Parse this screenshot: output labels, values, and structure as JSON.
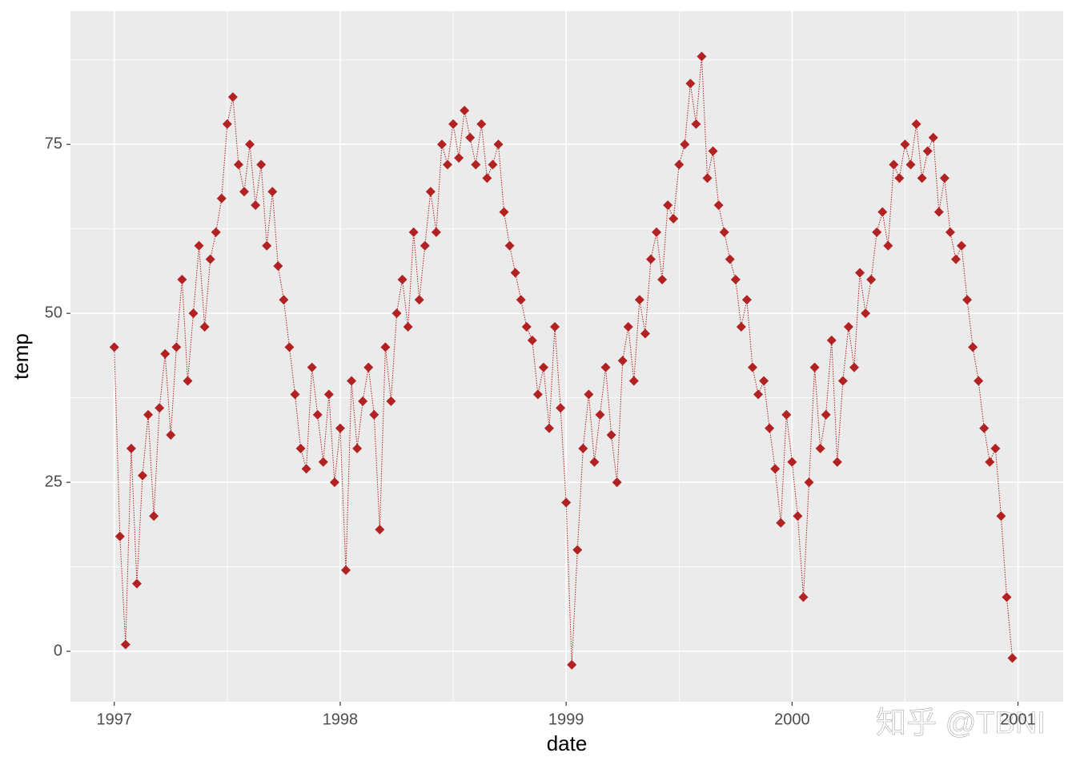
{
  "chart_data": {
    "type": "line",
    "x_label": "date",
    "y_label": "temp",
    "watermark": "知乎 @TBNI",
    "xlim": [
      1996.806,
      2001.2
    ],
    "ylim": [
      -7.46,
      94.7
    ],
    "xticks": [
      1997,
      1998,
      1999,
      2000,
      2001
    ],
    "yticks": [
      0,
      25,
      50,
      75
    ],
    "grid": true,
    "series": [
      {
        "name": "temp",
        "color": "#b22222",
        "marker": "diamond",
        "line_style": "dotted",
        "x": [
          1997.0,
          1997.025,
          1997.05,
          1997.075,
          1997.1,
          1997.125,
          1997.15,
          1997.175,
          1997.2,
          1997.225,
          1997.25,
          1997.275,
          1997.3,
          1997.325,
          1997.35,
          1997.375,
          1997.4,
          1997.425,
          1997.45,
          1997.475,
          1997.5,
          1997.525,
          1997.55,
          1997.575,
          1997.6,
          1997.625,
          1997.65,
          1997.675,
          1997.7,
          1997.725,
          1997.75,
          1997.775,
          1997.8,
          1997.825,
          1997.85,
          1997.875,
          1997.9,
          1997.925,
          1997.95,
          1997.975,
          1998.0,
          1998.025,
          1998.05,
          1998.075,
          1998.1,
          1998.125,
          1998.15,
          1998.175,
          1998.2,
          1998.225,
          1998.25,
          1998.275,
          1998.3,
          1998.325,
          1998.35,
          1998.375,
          1998.4,
          1998.425,
          1998.45,
          1998.475,
          1998.5,
          1998.525,
          1998.55,
          1998.575,
          1998.6,
          1998.625,
          1998.65,
          1998.675,
          1998.7,
          1998.725,
          1998.75,
          1998.775,
          1998.8,
          1998.825,
          1998.85,
          1998.875,
          1998.9,
          1998.925,
          1998.95,
          1998.975,
          1999.0,
          1999.025,
          1999.05,
          1999.075,
          1999.1,
          1999.125,
          1999.15,
          1999.175,
          1999.2,
          1999.225,
          1999.25,
          1999.275,
          1999.3,
          1999.325,
          1999.35,
          1999.375,
          1999.4,
          1999.425,
          1999.45,
          1999.475,
          1999.5,
          1999.525,
          1999.55,
          1999.575,
          1999.6,
          1999.625,
          1999.65,
          1999.675,
          1999.7,
          1999.725,
          1999.75,
          1999.775,
          1999.8,
          1999.825,
          1999.85,
          1999.875,
          1999.9,
          1999.925,
          1999.95,
          1999.975,
          2000.0,
          2000.025,
          2000.05,
          2000.075,
          2000.1,
          2000.125,
          2000.15,
          2000.175,
          2000.2,
          2000.225,
          2000.25,
          2000.275,
          2000.3,
          2000.325,
          2000.35,
          2000.375,
          2000.4,
          2000.425,
          2000.45,
          2000.475,
          2000.5,
          2000.525,
          2000.55,
          2000.575,
          2000.6,
          2000.625,
          2000.65,
          2000.675,
          2000.7,
          2000.725,
          2000.75,
          2000.775,
          2000.8,
          2000.825,
          2000.85,
          2000.875,
          2000.9,
          2000.925,
          2000.95,
          2000.975
        ],
        "values": [
          45,
          17,
          1,
          30,
          10,
          26,
          35,
          20,
          36,
          44,
          32,
          45,
          55,
          40,
          50,
          60,
          48,
          58,
          62,
          67,
          78,
          82,
          72,
          68,
          75,
          66,
          72,
          60,
          68,
          57,
          52,
          45,
          38,
          30,
          27,
          42,
          35,
          28,
          38,
          25,
          33,
          12,
          40,
          30,
          37,
          42,
          35,
          18,
          45,
          37,
          50,
          55,
          48,
          62,
          52,
          60,
          68,
          62,
          75,
          72,
          78,
          73,
          80,
          76,
          72,
          78,
          70,
          72,
          75,
          65,
          60,
          56,
          52,
          48,
          46,
          38,
          42,
          33,
          48,
          36,
          22,
          -2,
          15,
          30,
          38,
          28,
          35,
          42,
          32,
          25,
          43,
          48,
          40,
          52,
          47,
          58,
          62,
          55,
          66,
          64,
          72,
          75,
          84,
          78,
          88,
          70,
          74,
          66,
          62,
          58,
          55,
          48,
          52,
          42,
          38,
          40,
          33,
          27,
          19,
          35,
          28,
          20,
          8,
          25,
          42,
          30,
          35,
          46,
          28,
          40,
          48,
          42,
          56,
          50,
          55,
          62,
          65,
          60,
          72,
          70,
          75,
          72,
          78,
          70,
          74,
          76,
          65,
          70,
          62,
          58,
          60,
          52,
          45,
          40,
          33,
          28,
          30,
          20,
          8,
          -1
        ]
      }
    ]
  }
}
